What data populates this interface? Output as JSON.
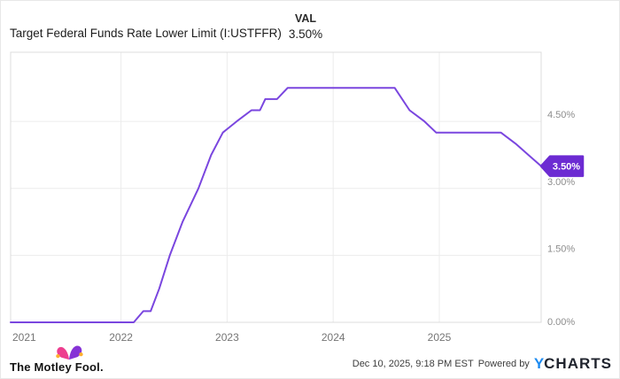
{
  "header": {
    "title": "Target Federal Funds Rate Lower Limit (I:USTFFR)",
    "val_label": "VAL",
    "val_value": "3.50%"
  },
  "chart_data": {
    "type": "line",
    "title": "Target Federal Funds Rate Lower Limit (I:USTFFR)",
    "xlabel": "",
    "ylabel": "",
    "x_range": [
      2020.96,
      2025.96
    ],
    "y_range": [
      0,
      6.05
    ],
    "grid": true,
    "legend": "none",
    "y_axis_side": "right",
    "x_ticks": [
      {
        "value": 2021,
        "label": "2021",
        "grid": false,
        "align": "start"
      },
      {
        "value": 2022,
        "label": "2022",
        "grid": true
      },
      {
        "value": 2023,
        "label": "2023",
        "grid": true
      },
      {
        "value": 2024,
        "label": "2024",
        "grid": true
      },
      {
        "value": 2025,
        "label": "2025",
        "grid": true
      }
    ],
    "y_ticks": [
      {
        "value": 0.0,
        "label": "0.00%",
        "grid": false
      },
      {
        "value": 1.5,
        "label": "1.50%",
        "grid": true
      },
      {
        "value": 3.0,
        "label": "3.00%",
        "grid": true
      },
      {
        "value": 4.5,
        "label": "4.50%",
        "grid": true
      }
    ],
    "series": [
      {
        "name": "Target Federal Funds Rate Lower Limit",
        "color": "#7a46df",
        "points": [
          [
            2020.96,
            0.0
          ],
          [
            2022.12,
            0.0
          ],
          [
            2022.21,
            0.25
          ],
          [
            2022.28,
            0.25
          ],
          [
            2022.36,
            0.75
          ],
          [
            2022.46,
            1.5
          ],
          [
            2022.58,
            2.25
          ],
          [
            2022.73,
            3.0
          ],
          [
            2022.85,
            3.75
          ],
          [
            2022.96,
            4.25
          ],
          [
            2023.09,
            4.5
          ],
          [
            2023.23,
            4.75
          ],
          [
            2023.31,
            4.75
          ],
          [
            2023.36,
            5.0
          ],
          [
            2023.47,
            5.0
          ],
          [
            2023.57,
            5.25
          ],
          [
            2024.58,
            5.25
          ],
          [
            2024.72,
            4.75
          ],
          [
            2024.86,
            4.5
          ],
          [
            2024.97,
            4.25
          ],
          [
            2025.58,
            4.25
          ],
          [
            2025.72,
            4.0
          ],
          [
            2025.84,
            3.75
          ],
          [
            2025.96,
            3.5
          ]
        ]
      }
    ],
    "end_label": {
      "text": "3.50%",
      "value": 3.5,
      "color": "#6c2bd2",
      "text_color": "#ffffff"
    },
    "colors": {
      "grid": "#ececec",
      "border": "#dcdcdc",
      "axis_label": "#8d8d8d",
      "x_label": "#757575"
    }
  },
  "footer": {
    "motley_fool": "The Motley Fool.",
    "timestamp": "Dec 10, 2025, 9:18 PM EST",
    "powered_by": "Powered by",
    "ycharts_y": "Y",
    "ycharts_charts": "CHARTS"
  }
}
